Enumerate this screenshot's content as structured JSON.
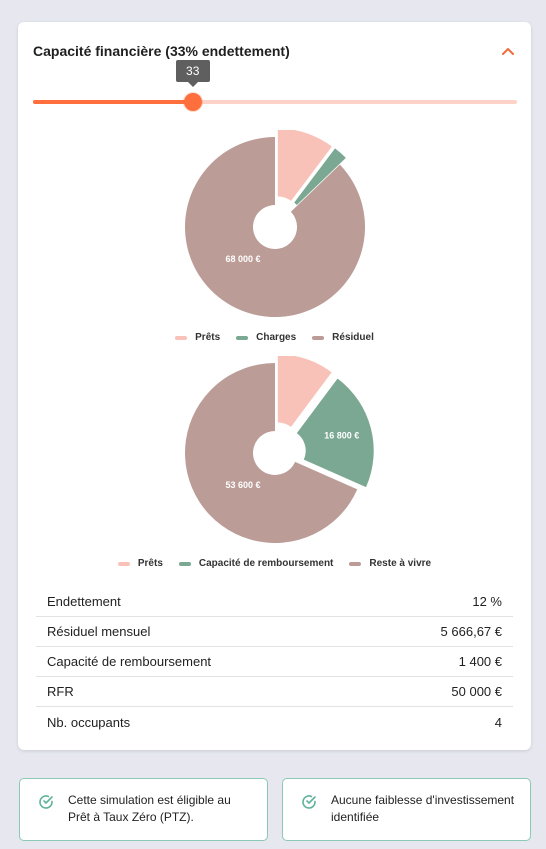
{
  "card": {
    "title": "Capacité financière (33% endettement)"
  },
  "slider": {
    "value": 33,
    "min": 0,
    "max": 100,
    "tooltip": "33",
    "color": "#ff6f3d",
    "track_color": "#fcd3c6"
  },
  "chart_data": [
    {
      "type": "pie",
      "categories": [
        "Prêts",
        "Charges",
        "Résiduel"
      ],
      "values": [
        8000,
        2000,
        68000
      ],
      "labels": [
        "",
        "",
        "68 000 €"
      ],
      "colors": [
        "#f9c2b8",
        "#7aa892",
        "#bb9c97"
      ],
      "legend": [
        "Prêts",
        "Charges",
        "Résiduel"
      ],
      "legend_position": "bottom"
    },
    {
      "type": "pie",
      "categories": [
        "Prêts",
        "Capacité de remboursement",
        "Reste à vivre"
      ],
      "values": [
        8000,
        16800,
        53600
      ],
      "labels": [
        "",
        "16 800 €",
        "53 600 €"
      ],
      "colors": [
        "#f9c2b8",
        "#7aa892",
        "#bb9c97"
      ],
      "legend": [
        "Prêts",
        "Capacité de remboursement",
        "Reste à vivre"
      ],
      "legend_position": "bottom"
    }
  ],
  "table": {
    "rows": [
      {
        "label": "Endettement",
        "value": "12 %"
      },
      {
        "label": "Résiduel mensuel",
        "value": "5 666,67 €"
      },
      {
        "label": "Capacité de remboursement",
        "value": "1 400 €"
      },
      {
        "label": "RFR",
        "value": "50 000 €"
      },
      {
        "label": "Nb. occupants",
        "value": "4"
      }
    ]
  },
  "notices": [
    {
      "text": "Cette simulation est éligible au Prêt à Taux Zéro (PTZ).",
      "icon": "check-circle-icon"
    },
    {
      "text": "Aucune faiblesse d'investissement identifiée",
      "icon": "check-circle-icon"
    }
  ],
  "accent_color": "#f26b3a",
  "success_color": "#5fb39a"
}
